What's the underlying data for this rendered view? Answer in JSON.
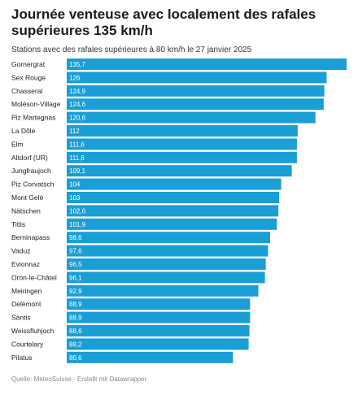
{
  "title": "Journée venteuse avec localement des rafales supérieures 135 km/h",
  "subtitle": "Stations avec des rafales supérieures à 80 km/h le 27 janvier 2025",
  "source": "Quelle: MeteoSuisse · Erstellt mit Datawrapper",
  "colors": {
    "bar": "#1a9ed6",
    "value_text": "#ffffff"
  },
  "chart_data": {
    "type": "bar",
    "orientation": "horizontal",
    "title": "Journée venteuse avec localement des rafales supérieures 135 km/h",
    "subtitle": "Stations avec des rafales supérieures à 80 km/h le 27 janvier 2025",
    "categories": [
      "Gornergrat",
      "Sex Rouge",
      "Chasseral",
      "Moléson-Village",
      "Piz Martegnas",
      "La Dôle",
      "Elm",
      "Altdorf (UR)",
      "Jungfraujoch",
      "Piz Corvatsch",
      "Mont Gelé",
      "Nätschen",
      "Titlis",
      "Berninapass",
      "Vaduz",
      "Evionnaz",
      "Oron-le-Châtel",
      "Meiringen",
      "Delémont",
      "Säntis",
      "Weissfluhjoch",
      "Courtelary",
      "Pilatus"
    ],
    "values": [
      135.7,
      126,
      124.9,
      124.6,
      120.6,
      112,
      111.6,
      111.6,
      109.1,
      104,
      103,
      102.6,
      101.9,
      98.6,
      97.6,
      96.5,
      96.1,
      92.9,
      88.9,
      88.9,
      88.6,
      88.2,
      80.6
    ],
    "value_labels": [
      "135,7",
      "126",
      "124,9",
      "124,6",
      "120,6",
      "112",
      "111,6",
      "111,6",
      "109,1",
      "104",
      "103",
      "102,6",
      "101,9",
      "98,6",
      "97,6",
      "96,5",
      "96,1",
      "92,9",
      "88,9",
      "88,9",
      "88,6",
      "88,2",
      "80,6"
    ],
    "xlabel": "",
    "ylabel": "",
    "xlim": [
      0,
      135.7
    ],
    "grid": false,
    "legend": "none"
  }
}
